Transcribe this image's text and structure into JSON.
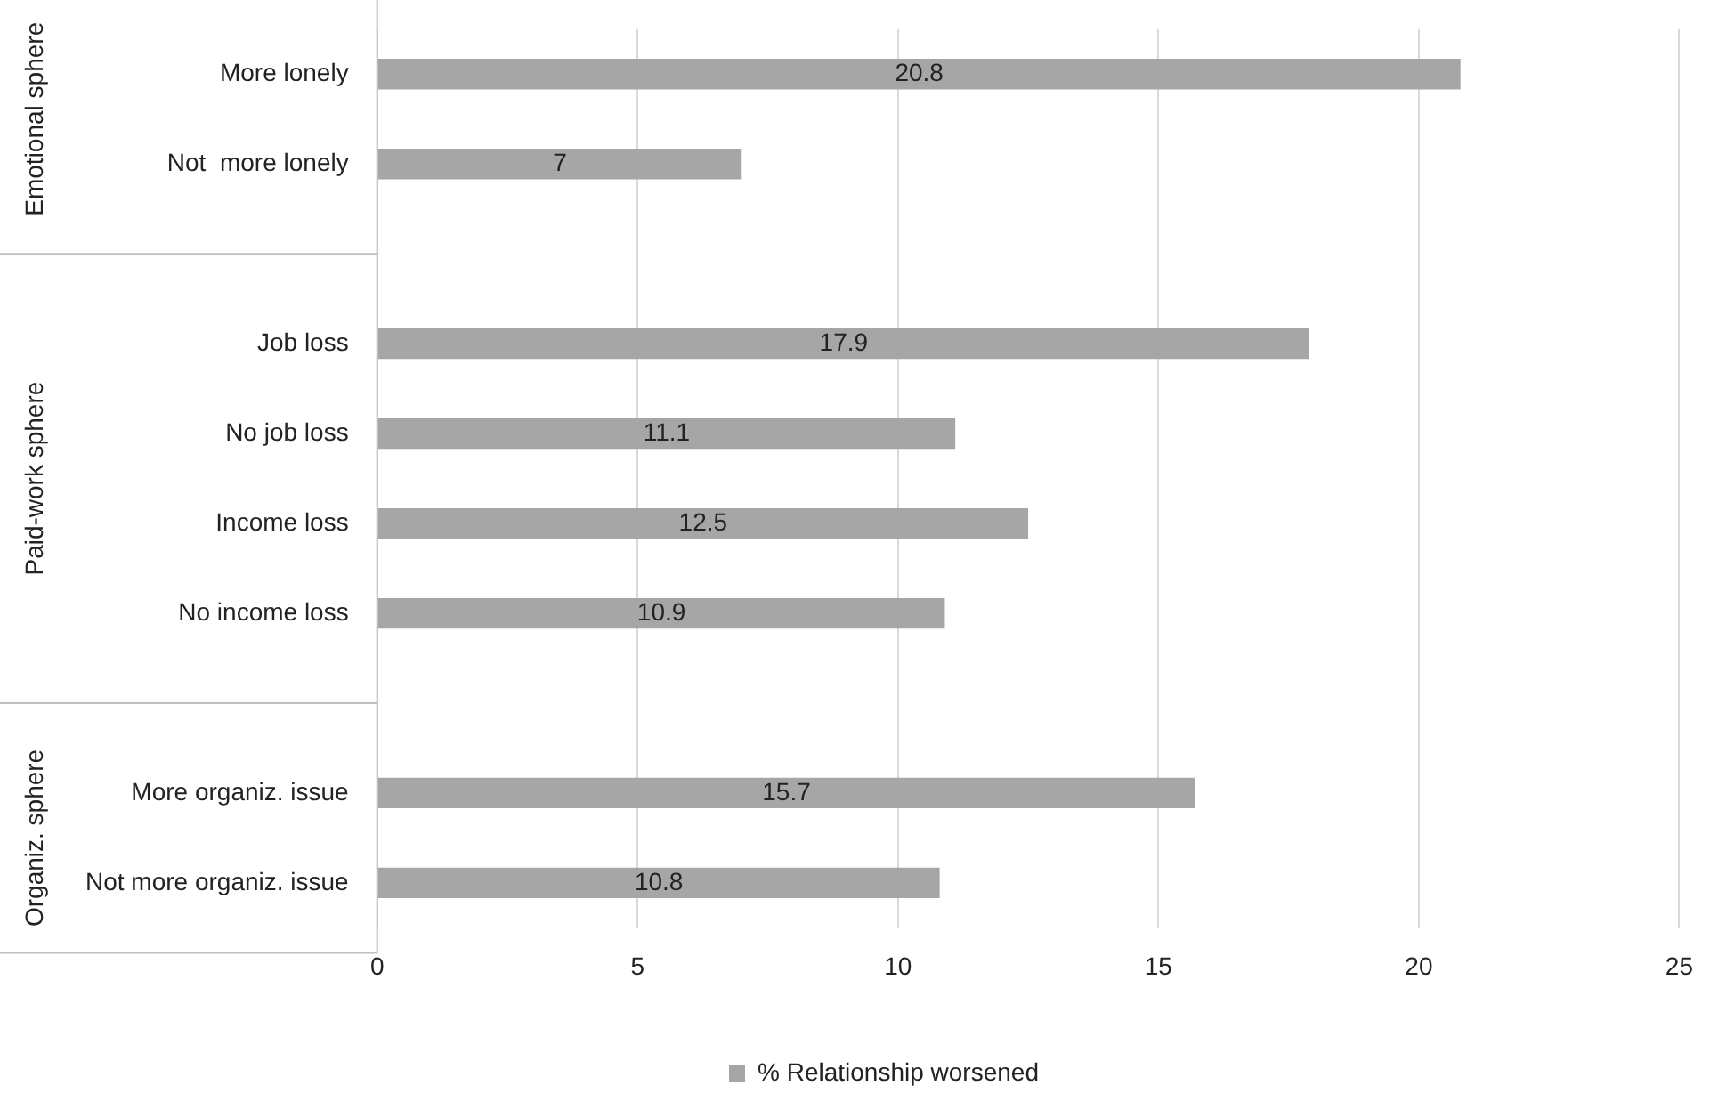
{
  "chart_data": {
    "type": "bar",
    "orientation": "horizontal",
    "categories": [
      "More lonely",
      "Not  more lonely",
      null,
      "Job loss",
      "No job loss",
      "Income loss",
      "No income loss",
      null,
      "More organiz. issue",
      "Not more organiz. issue"
    ],
    "series": [
      {
        "name": "% Relationship worsened",
        "color": "#a6a6a6",
        "values": [
          20.8,
          7,
          null,
          17.9,
          11.1,
          12.5,
          10.9,
          null,
          15.7,
          10.8
        ]
      }
    ],
    "xlim": [
      0,
      25
    ],
    "xticks": [
      0,
      5,
      10,
      15,
      20,
      25
    ],
    "grid": "x",
    "legend": "bottom",
    "data_labels": true,
    "annotations": [
      "Emotional sphere",
      "Paid-work sphere",
      "Organiz. sphere"
    ]
  }
}
